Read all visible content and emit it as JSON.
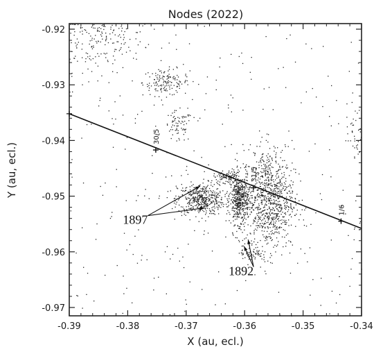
{
  "chart_data": {
    "type": "scatter",
    "title": "Nodes (2022)",
    "xlabel": "X (au, ecl.)",
    "ylabel": "Y (au, ecl.)",
    "xlim": [
      -0.39,
      -0.34
    ],
    "ylim": [
      -0.9715,
      -0.919
    ],
    "x_ticks": [
      "-0.39",
      "-0.38",
      "-0.37",
      "-0.36",
      "-0.35",
      "-0.34"
    ],
    "y_ticks": [
      "-0.92",
      "-0.93",
      "-0.94",
      "-0.95",
      "-0.96",
      "-0.97"
    ],
    "grid": false,
    "earth_orbit": {
      "points": [
        [
          -0.39,
          -0.9352
        ],
        [
          -0.34,
          -0.9558
        ]
      ],
      "date_marks": [
        {
          "label": "30/5",
          "x": -0.3752,
          "y": -0.9417
        },
        {
          "label": "31/5",
          "x": -0.3585,
          "y": -0.9485
        },
        {
          "label": "1/6",
          "x": -0.3435,
          "y": -0.9545
        }
      ]
    },
    "clusters": [
      {
        "region": "upper-left",
        "x": -0.3855,
        "y": -0.9215,
        "sx": 0.004,
        "sy": 0.003,
        "n": 220
      },
      {
        "region": "mid-upper",
        "x": -0.3735,
        "y": -0.9295,
        "sx": 0.002,
        "sy": 0.0012,
        "n": 150
      },
      {
        "region": "mid",
        "x": -0.3715,
        "y": -0.9375,
        "sx": 0.0012,
        "sy": 0.0014,
        "n": 70
      },
      {
        "region": "1897-a",
        "x": -0.3675,
        "y": -0.9505,
        "sx": 0.002,
        "sy": 0.0014,
        "n": 450
      },
      {
        "region": "1897-b",
        "x": -0.363,
        "y": -0.9465,
        "sx": 0.0012,
        "sy": 0.0005,
        "n": 90
      },
      {
        "region": "1892-band",
        "x": -0.361,
        "y": -0.9505,
        "sx": 0.0008,
        "sy": 0.0022,
        "n": 450
      },
      {
        "region": "1892-main",
        "x": -0.356,
        "y": -0.9505,
        "sx": 0.0022,
        "sy": 0.0045,
        "n": 900
      },
      {
        "region": "tail",
        "x": -0.359,
        "y": -0.96,
        "sx": 0.001,
        "sy": 0.001,
        "n": 60
      },
      {
        "region": "right-edge",
        "x": -0.341,
        "y": -0.939,
        "sx": 0.0008,
        "sy": 0.002,
        "n": 40
      }
    ],
    "background_dots": 300,
    "annotations": [
      {
        "label": "1897",
        "x": -0.3787,
        "y": -0.955,
        "arrow_to": [
          [
            -0.3668,
            -0.9521
          ],
          [
            -0.3676,
            -0.9482
          ]
        ]
      },
      {
        "label": "1892",
        "x": -0.3606,
        "y": -0.9642,
        "arrow_to": [
          [
            -0.3601,
            -0.959
          ],
          [
            -0.3594,
            -0.9578
          ]
        ]
      }
    ]
  }
}
